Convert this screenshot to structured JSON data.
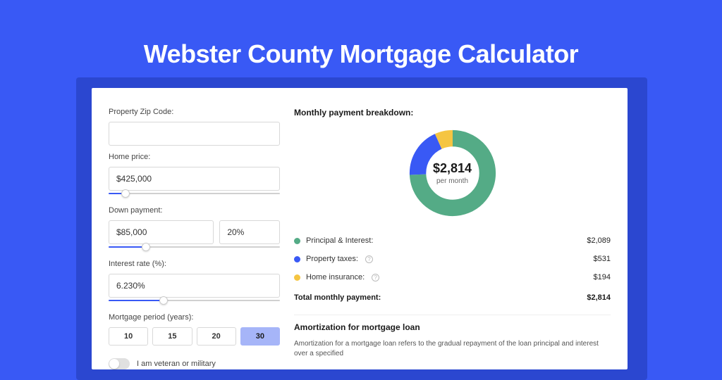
{
  "page": {
    "title": "Webster County Mortgage Calculator",
    "bg_color": "#3959f5",
    "shadow_color": "#2b47d0",
    "card_bg": "#ffffff"
  },
  "form": {
    "zip": {
      "label": "Property Zip Code:",
      "value": ""
    },
    "home_price": {
      "label": "Home price:",
      "value": "$425,000",
      "slider_pct": 10
    },
    "down_payment": {
      "label": "Down payment:",
      "amount": "$85,000",
      "percent": "20%",
      "slider_pct": 22
    },
    "interest_rate": {
      "label": "Interest rate (%):",
      "value": "6.230%",
      "slider_pct": 32
    },
    "mortgage_period": {
      "label": "Mortgage period (years):",
      "options": [
        "10",
        "15",
        "20",
        "30"
      ],
      "selected": "30"
    },
    "veteran": {
      "label": "I am veteran or military",
      "value": false
    }
  },
  "breakdown": {
    "title": "Monthly payment breakdown:",
    "donut": {
      "amount": "$2,814",
      "sub": "per month",
      "segments": [
        {
          "name": "principal_interest",
          "color": "#54ab86",
          "fraction": 0.742
        },
        {
          "name": "property_taxes",
          "color": "#3959f5",
          "fraction": 0.189
        },
        {
          "name": "home_insurance",
          "color": "#f5c542",
          "fraction": 0.069
        }
      ],
      "stroke_width": 18
    },
    "rows": [
      {
        "label": "Principal & Interest:",
        "color": "#54ab86",
        "value": "$2,089",
        "info": false
      },
      {
        "label": "Property taxes:",
        "color": "#3959f5",
        "value": "$531",
        "info": true
      },
      {
        "label": "Home insurance:",
        "color": "#f5c542",
        "value": "$194",
        "info": true
      }
    ],
    "total": {
      "label": "Total monthly payment:",
      "value": "$2,814"
    }
  },
  "amortization": {
    "title": "Amortization for mortgage loan",
    "text": "Amortization for a mortgage loan refers to the gradual repayment of the loan principal and interest over a specified"
  }
}
